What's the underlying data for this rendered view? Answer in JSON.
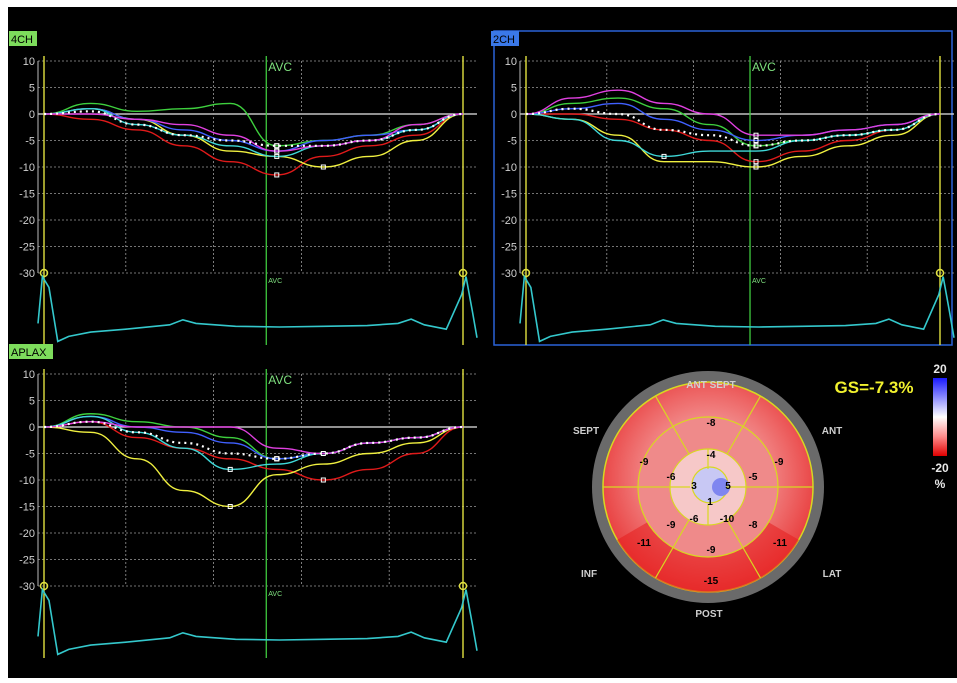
{
  "panels": [
    {
      "id": "4ch",
      "label": "4CH",
      "label_bg": "#7ddc5c",
      "selected": false,
      "avc_label": "AVC"
    },
    {
      "id": "2ch",
      "label": "2CH",
      "label_bg": "#3a78e8",
      "selected": true,
      "avc_label": "AVC"
    },
    {
      "id": "aplax",
      "label": "APLAX",
      "label_bg": "#7ddc5c",
      "selected": false,
      "avc_label": "AVC"
    }
  ],
  "y_axis_ticks": [
    "10",
    "5",
    "0",
    "-5",
    "-10",
    "-15",
    "-20",
    "-25",
    "-30"
  ],
  "y_axis_values": [
    10,
    5,
    0,
    -5,
    -10,
    -15,
    -20,
    -25,
    -30
  ],
  "curve_colors": {
    "red": "#e01a1a",
    "yellow": "#f0f040",
    "green": "#3ed03e",
    "blue": "#4060ff",
    "cyan": "#3fd8d8",
    "magenta": "#e040e0",
    "white": "#ffffff",
    "ecg": "#34c8cc",
    "axis_marker": "#e0e040",
    "avc_line": "#3fc93f"
  },
  "chart_data": [
    {
      "type": "line",
      "panel": "4CH",
      "ylim": [
        -30,
        10
      ],
      "title": "",
      "series": [
        {
          "color": "red",
          "values": [
            0,
            -1,
            -3,
            -6,
            -9,
            -11.5,
            -8,
            -6,
            -4,
            0
          ]
        },
        {
          "color": "yellow",
          "values": [
            0,
            1,
            -1,
            -4,
            -7,
            -8,
            -10,
            -8,
            -5,
            0
          ]
        },
        {
          "color": "green",
          "values": [
            0,
            2,
            0.5,
            1,
            2,
            -6,
            -5,
            -4,
            -2,
            0
          ]
        },
        {
          "color": "blue",
          "values": [
            0,
            1,
            -1,
            -3,
            -5,
            -7,
            -5,
            -4,
            -3,
            0
          ]
        },
        {
          "color": "cyan",
          "values": [
            0,
            1,
            -2,
            -4,
            -6,
            -8,
            -6,
            -5,
            -3,
            0
          ]
        },
        {
          "color": "magenta",
          "values": [
            0,
            0,
            -1,
            -2,
            -4,
            -7,
            -6,
            -5,
            -2,
            0
          ]
        },
        {
          "color": "white",
          "values": [
            0,
            0.5,
            -2,
            -4,
            -5,
            -6,
            -6,
            -5,
            -3,
            0
          ]
        }
      ]
    },
    {
      "type": "line",
      "panel": "2CH",
      "ylim": [
        -30,
        10
      ],
      "title": "",
      "series": [
        {
          "color": "red",
          "values": [
            0,
            0,
            -1,
            -3,
            -5,
            -9,
            -7,
            -5,
            -3,
            0
          ]
        },
        {
          "color": "yellow",
          "values": [
            0,
            -1,
            -4,
            -9,
            -9,
            -10,
            -8,
            -6,
            -4,
            0
          ]
        },
        {
          "color": "green",
          "values": [
            0,
            2,
            3,
            1,
            -2,
            -6,
            -5,
            -4,
            -3,
            0
          ]
        },
        {
          "color": "blue",
          "values": [
            0,
            1,
            2,
            -1,
            -3,
            -5,
            -4,
            -3,
            -2,
            0
          ]
        },
        {
          "color": "cyan",
          "values": [
            0,
            -1,
            -5,
            -8,
            -7,
            -7,
            -5,
            -4,
            -3,
            0
          ]
        },
        {
          "color": "magenta",
          "values": [
            0,
            3,
            4.5,
            2,
            0,
            -4,
            -4,
            -3,
            -2,
            0
          ]
        },
        {
          "color": "white",
          "values": [
            0,
            1,
            0,
            -3,
            -4,
            -6,
            -5,
            -4,
            -3,
            0
          ]
        }
      ]
    },
    {
      "type": "line",
      "panel": "APLAX",
      "ylim": [
        -30,
        10
      ],
      "title": "",
      "series": [
        {
          "color": "red",
          "values": [
            0,
            1,
            -2,
            -4,
            -6,
            -8,
            -10,
            -8,
            -5,
            0
          ]
        },
        {
          "color": "yellow",
          "values": [
            0,
            -1,
            -6,
            -12,
            -15,
            -9,
            -7,
            -5,
            -3,
            0
          ]
        },
        {
          "color": "green",
          "values": [
            0,
            2.5,
            1,
            0,
            -2,
            -6,
            -5,
            -3,
            -2,
            0
          ]
        },
        {
          "color": "blue",
          "values": [
            0,
            2,
            0,
            -1,
            -3,
            -6,
            -5,
            -3,
            -2,
            0
          ]
        },
        {
          "color": "cyan",
          "values": [
            0,
            2,
            -1,
            -4,
            -8,
            -7,
            -5,
            -3,
            -2,
            0
          ]
        },
        {
          "color": "magenta",
          "values": [
            0,
            1,
            0,
            0,
            0,
            -4,
            -5,
            -3,
            -2,
            0
          ]
        },
        {
          "color": "white",
          "values": [
            0,
            1,
            -1,
            -3,
            -5,
            -6,
            -5,
            -3,
            -2,
            0
          ]
        }
      ]
    }
  ],
  "bullseye": {
    "gs_label": "GS=-7.3%",
    "directions": {
      "ant_sept": "ANT SEPT",
      "ant": "ANT",
      "sept": "SEPT",
      "inf": "INF",
      "lat": "LAT",
      "post": "POST"
    },
    "basal_segments": [
      "-8",
      "-9",
      "-11",
      "-15",
      "-11",
      "-9"
    ],
    "mid_segments": [
      "-4",
      "-5",
      "-8",
      "-9",
      "-9",
      "-6"
    ],
    "apical_segments": [
      "5",
      "-10",
      "-6",
      "3"
    ],
    "apex": "1"
  },
  "color_scale": {
    "max_label": "20",
    "min_label": "-20",
    "unit": "%"
  }
}
